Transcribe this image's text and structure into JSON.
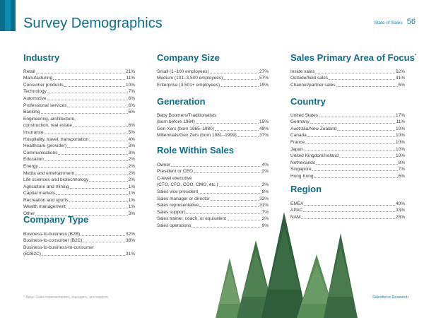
{
  "header": {
    "title": "Survey Demographics",
    "section": "State of Sales",
    "page_number": "56"
  },
  "industry": {
    "title": "Industry",
    "items": [
      {
        "label": "Retail",
        "value": "21%"
      },
      {
        "label": "Manufacturing",
        "value": "11%"
      },
      {
        "label": "Consumer products",
        "value": "10%"
      },
      {
        "label": "Technology",
        "value": "7%"
      },
      {
        "label": "Automotive",
        "value": "6%"
      },
      {
        "label": "Professional services",
        "value": "6%"
      },
      {
        "label": "Banking",
        "value": "6%"
      },
      {
        "label": "Engineering, architecture,",
        "label2": "construction, real estate",
        "value": "6%"
      },
      {
        "label": "Insurance",
        "value": "5%"
      },
      {
        "label": "Hospitality, travel, transportation",
        "value": "4%"
      },
      {
        "label": "Healthcare (provider)",
        "value": "3%"
      },
      {
        "label": "Communications",
        "value": "3%"
      },
      {
        "label": "Education",
        "value": "2%"
      },
      {
        "label": "Energy",
        "value": "2%"
      },
      {
        "label": "Media and entertainment",
        "value": "2%"
      },
      {
        "label": "Life sciences and biotechnology",
        "value": "2%"
      },
      {
        "label": "Agriculture and mining",
        "value": "1%"
      },
      {
        "label": "Capital markets",
        "value": "1%"
      },
      {
        "label": "Recreation and sports",
        "value": "1%"
      },
      {
        "label": "Wealth management",
        "value": "1%"
      },
      {
        "label": "Other",
        "value": "3%"
      }
    ]
  },
  "company_type": {
    "title": "Company Type",
    "items": [
      {
        "label": "Business-to-business (B2B)",
        "value": "32%"
      },
      {
        "label": "Business-to-consumer (B2C)",
        "value": "38%"
      },
      {
        "label": "Business-to-business-to-consumer",
        "label2": "(B2B2C)",
        "value": "31%"
      }
    ]
  },
  "company_size": {
    "title": "Company Size",
    "items": [
      {
        "label": "Small (1–100 employees)",
        "value": "27%"
      },
      {
        "label": "Medium (101–3,500 employees)",
        "value": "57%"
      },
      {
        "label": "Enterprise (3,501+ employees)",
        "value": "15%"
      }
    ]
  },
  "generation": {
    "title": "Generation",
    "items": [
      {
        "label": "Baby Boomers/Traditionalists",
        "label2": "(born before 1964)",
        "value": "15%"
      },
      {
        "label": "Gen Xers (born 1965–1980)",
        "value": "48%"
      },
      {
        "label": "Millennials/Gen Zers (born 1981–1999)",
        "value": "37%"
      }
    ]
  },
  "role": {
    "title": "Role Within Sales",
    "items": [
      {
        "label": "Owner",
        "value": "4%"
      },
      {
        "label": "President or CEO",
        "value": "2%"
      },
      {
        "label": "C-level executive",
        "label2": "(CTO, CFO, COO, CMO, etc.)",
        "value": "3%"
      },
      {
        "label": "Sales vice president",
        "value": "8%"
      },
      {
        "label": "Sales manager or director",
        "value": "32%"
      },
      {
        "label": "Sales representative",
        "value": "31%"
      },
      {
        "label": "Sales support",
        "value": "7%"
      },
      {
        "label": "Sales trainer, coach, or equivalent",
        "value": "2%"
      },
      {
        "label": "Sales operations",
        "value": "9%"
      }
    ]
  },
  "sales_area": {
    "title": "Sales Primary Area of Focus",
    "title_mark": "*",
    "items": [
      {
        "label": "Inside sales",
        "value": "52%"
      },
      {
        "label": "Outside/field sales",
        "value": "41%"
      },
      {
        "label": "Channel/partner sales",
        "value": "6%"
      }
    ]
  },
  "country": {
    "title": "Country",
    "items": [
      {
        "label": "United States",
        "value": "17%"
      },
      {
        "label": "Germany",
        "value": "11%"
      },
      {
        "label": "Australia/New Zealand",
        "value": "10%"
      },
      {
        "label": "Canada",
        "value": "10%"
      },
      {
        "label": "France",
        "value": "10%"
      },
      {
        "label": "Japan",
        "value": "10%"
      },
      {
        "label": "United Kingdom/Ireland",
        "value": "10%"
      },
      {
        "label": "Netherlands",
        "value": "8%"
      },
      {
        "label": "Singapore",
        "value": "7%"
      },
      {
        "label": "Hong Kong",
        "value": "6%"
      }
    ]
  },
  "region": {
    "title": "Region",
    "items": [
      {
        "label": "EMEA",
        "value": "40%"
      },
      {
        "label": "APAC",
        "value": "33%"
      },
      {
        "label": "NAM",
        "value": "28%"
      }
    ]
  },
  "footer": {
    "note": "* Base: Sales representatives, managers, and support.",
    "brand": "Salesforce Research"
  },
  "colors": {
    "accent": "#0b6e8c",
    "tree_dark": "#2f5d3a",
    "tree_light": "#5d8f5a"
  }
}
